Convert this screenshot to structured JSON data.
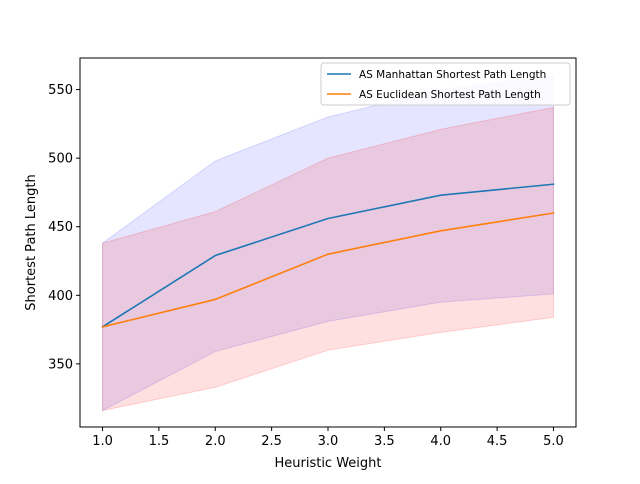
{
  "chart_data": {
    "type": "line",
    "title": "",
    "xlabel": "Heuristic Weight",
    "ylabel": "Shortest Path Length",
    "x": [
      1.0,
      2.0,
      3.0,
      4.0,
      5.0
    ],
    "xlim": [
      0.8,
      5.2
    ],
    "ylim": [
      304,
      573
    ],
    "xticks": [
      1.0,
      1.5,
      2.0,
      2.5,
      3.0,
      3.5,
      4.0,
      4.5,
      5.0
    ],
    "xtick_labels": [
      "1.0",
      "1.5",
      "2.0",
      "2.5",
      "3.0",
      "3.5",
      "4.0",
      "4.5",
      "5.0"
    ],
    "yticks": [
      350,
      400,
      450,
      500,
      550
    ],
    "ytick_labels": [
      "350",
      "400",
      "450",
      "500",
      "550"
    ],
    "grid": false,
    "legend": "top-right",
    "series": [
      {
        "name": "AS Manhattan Shortest Path Length",
        "color": "#1f77b4",
        "values": [
          377,
          429,
          456,
          473,
          481
        ],
        "band_lower": [
          316,
          359,
          381,
          395,
          401
        ],
        "band_upper": [
          438,
          498,
          530,
          550,
          560
        ],
        "band_color": "#0000ff",
        "band_opacity": 0.1
      },
      {
        "name": "AS Euclidean Shortest Path Length",
        "color": "#ff7f0e",
        "values": [
          377,
          397,
          430,
          447,
          460
        ],
        "band_lower": [
          316,
          333,
          360,
          373,
          384
        ],
        "band_upper": [
          438,
          461,
          500,
          521,
          537
        ],
        "band_color": "#ff0000",
        "band_opacity": 0.12
      }
    ]
  }
}
